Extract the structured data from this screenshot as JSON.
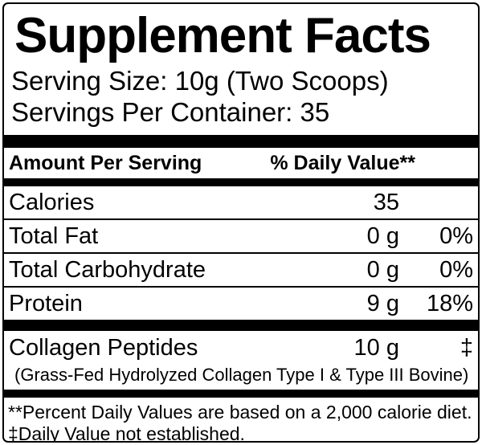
{
  "label": {
    "title": "Supplement Facts",
    "serving_size": "Serving Size: 10g (Two Scoops)",
    "servings_per_container": "Servings Per Container: 35",
    "column_headers": {
      "amount": "Amount Per Serving",
      "daily_value": "% Daily Value**"
    },
    "rows": [
      {
        "name": "Calories",
        "amount": "35",
        "dv": ""
      },
      {
        "name": "Total Fat",
        "amount": "0 g",
        "dv": "0%"
      },
      {
        "name": "Total Carbohydrate",
        "amount": "0 g",
        "dv": "0%"
      },
      {
        "name": "Protein",
        "amount": "9 g",
        "dv": "18%"
      }
    ],
    "ingredient": {
      "name": "Collagen Peptides",
      "amount": "10 g",
      "dv": "‡",
      "detail": "(Grass-Fed Hydrolyzed Collagen Type I & Type III Bovine)"
    },
    "footnotes": [
      "**Percent Daily Values are based on a 2,000 calorie diet.",
      "‡Daily Value not established."
    ],
    "colors": {
      "text": "#000000",
      "background": "#ffffff",
      "border": "#000000"
    }
  }
}
